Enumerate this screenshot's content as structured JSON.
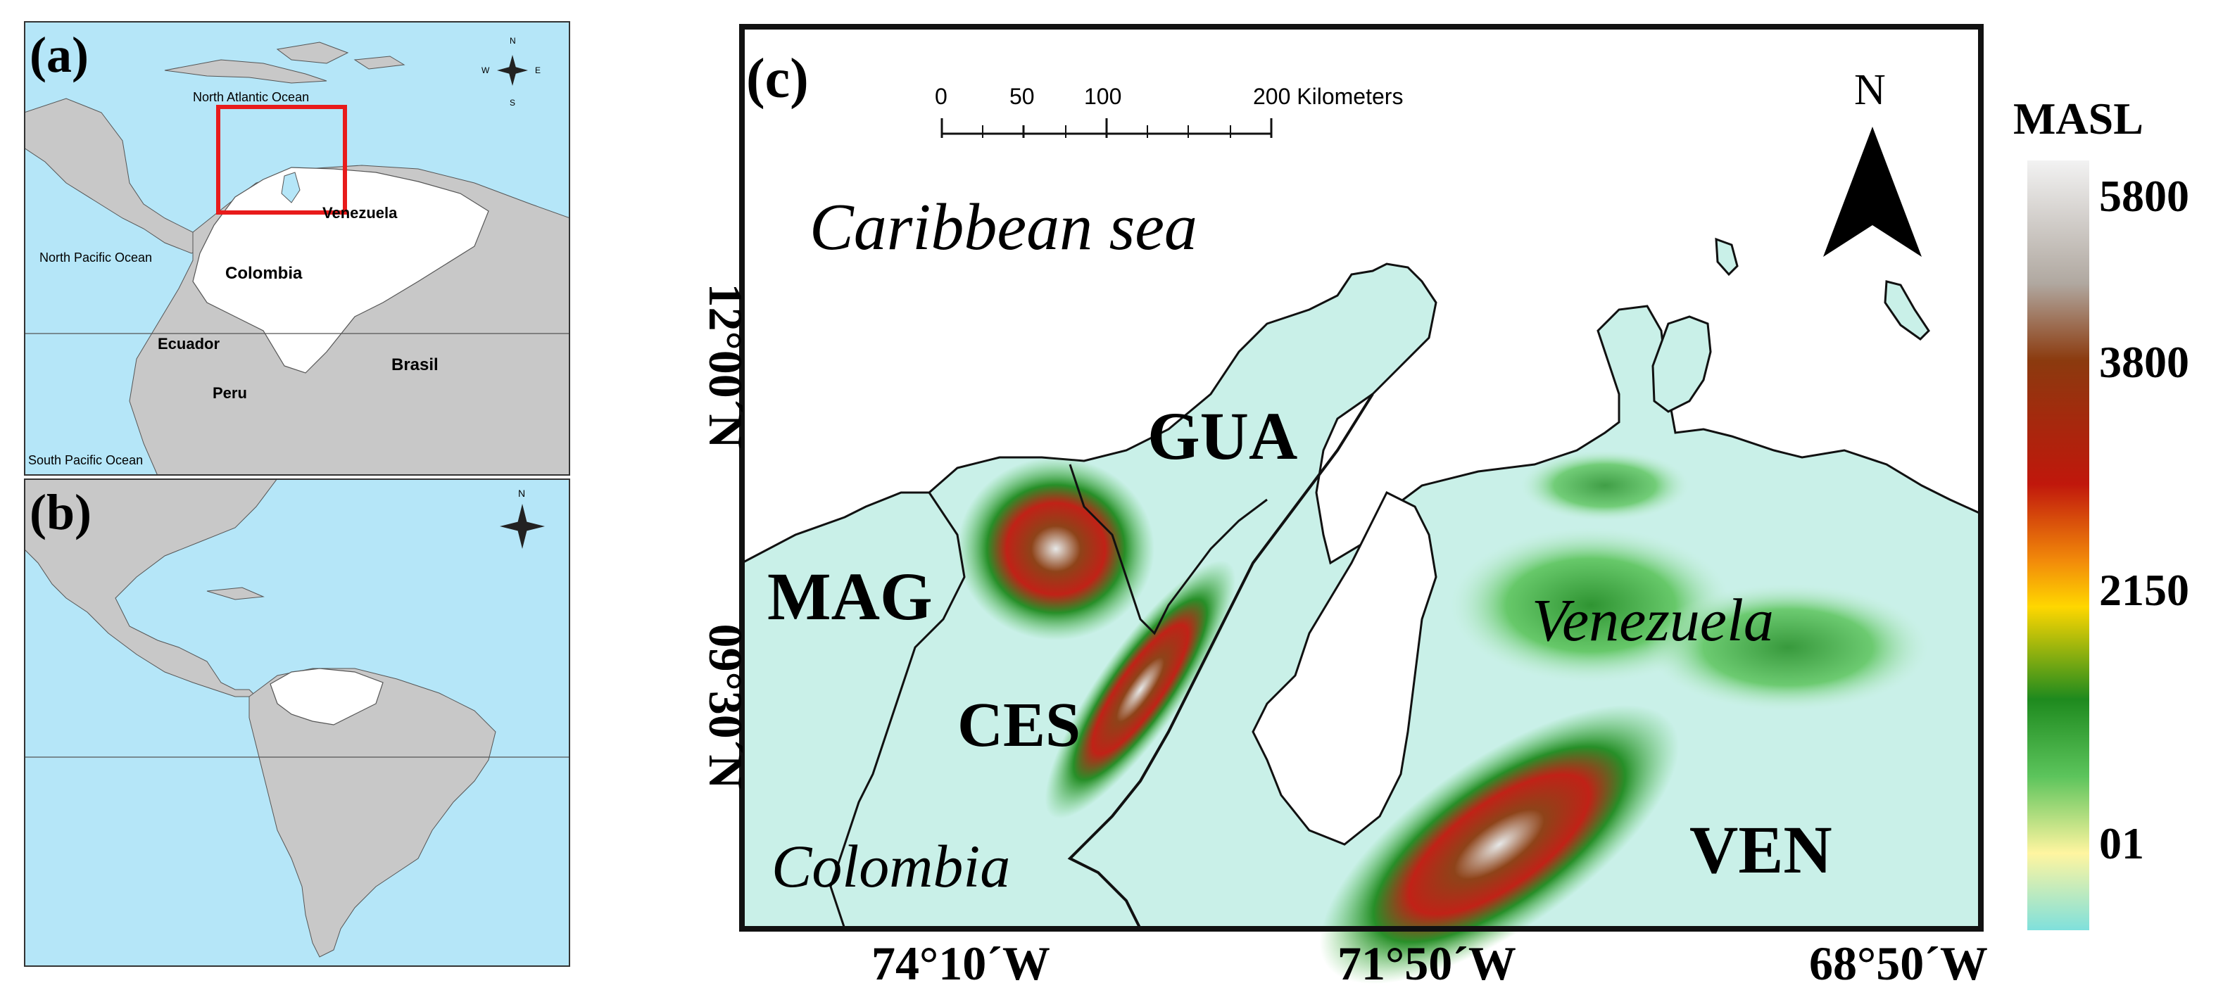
{
  "panels": {
    "a": {
      "label": "(a)",
      "places": {
        "north_atlantic": "North Atlantic Ocean",
        "north_pacific": "North Pacific Ocean",
        "south_pacific": "South Pacific Ocean",
        "venezuela": "Venezuela",
        "colombia": "Colombia",
        "ecuador": "Ecuador",
        "peru": "Peru",
        "brasil": "Brasil"
      },
      "compass": {
        "n": "N",
        "s": "S",
        "e": "E",
        "w": "W"
      }
    },
    "b": {
      "label": "(b)",
      "compass": {
        "n": "N"
      }
    },
    "c": {
      "label": "(c)",
      "sea": "Caribbean sea",
      "regions": {
        "gua": "GUA",
        "mag": "MAG",
        "ces": "CES",
        "ven": "VEN"
      },
      "countries": {
        "venezuela": "Venezuela",
        "colombia": "Colombia"
      },
      "scale_bar": {
        "ticks": [
          "0",
          "50",
          "100",
          "200 Kilometers"
        ]
      },
      "north_arrow": "N",
      "lat_labels": [
        "12°00´N",
        "09°30´N"
      ],
      "lon_labels": [
        "74°10´W",
        "71°50´W",
        "68°50´W"
      ]
    }
  },
  "legend": {
    "title": "MASL",
    "ticks": [
      "5800",
      "3800",
      "2150",
      "01"
    ],
    "colors": [
      "#dcdcdc",
      "#8b3a0e",
      "#c0170c",
      "#f28a0a",
      "#ffd700",
      "#1e8a1e",
      "#5cc45c",
      "#fff5a0",
      "#7fe0dc"
    ]
  },
  "colors": {
    "ocean": "#b5e6f8",
    "land_other": "#c8c8c8",
    "land_focus": "#ffffff",
    "highlight_box": "#e81b1b"
  }
}
